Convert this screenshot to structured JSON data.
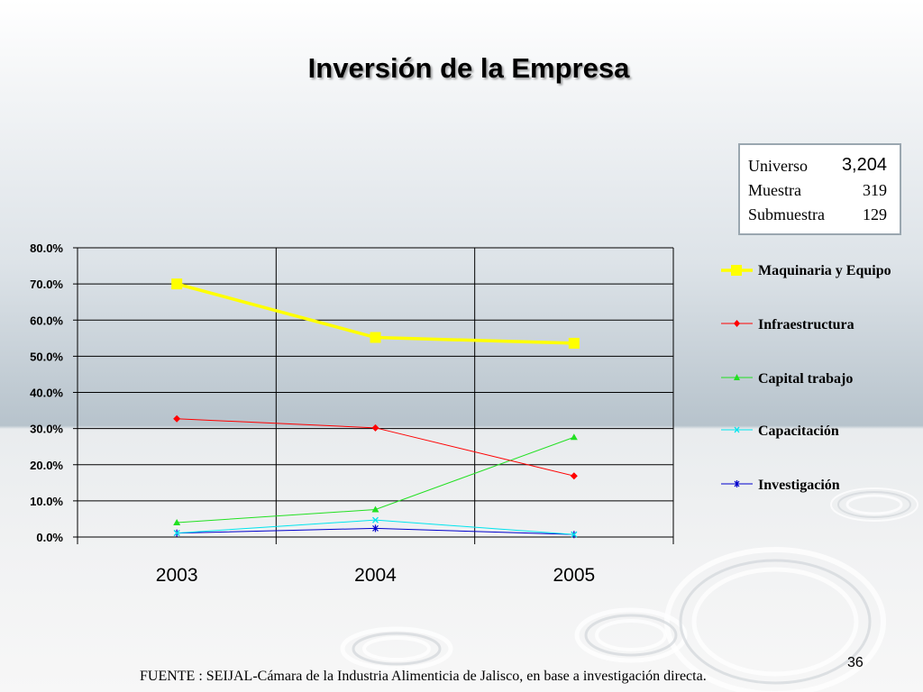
{
  "slide": {
    "title": "Inversión de la Empresa",
    "footer": "FUENTE : SEIJAL-Cámara de la Industria Alimenticia de Jalisco,  en base a investigación directa.",
    "page_number": "36"
  },
  "info_box": {
    "rows": [
      {
        "label": "Universo",
        "value": "3,204"
      },
      {
        "label": "Muestra",
        "value": "319"
      },
      {
        "label": "Submuestra",
        "value": "129"
      }
    ]
  },
  "chart_data": {
    "type": "line",
    "title": "",
    "xlabel": "",
    "ylabel": "",
    "categories": [
      "2003",
      "2004",
      "2005"
    ],
    "ylim": [
      0,
      80
    ],
    "yticks": [
      "0.0%",
      "10.0%",
      "20.0%",
      "30.0%",
      "40.0%",
      "50.0%",
      "60.0%",
      "70.0%",
      "80.0%"
    ],
    "grid": true,
    "legend_position": "right",
    "series": [
      {
        "name": "Maquinaria y Equipo",
        "values": [
          70.0,
          55.2,
          53.6
        ],
        "color": "#ffff00",
        "marker": "square",
        "width": "thick"
      },
      {
        "name": "Infraestructura",
        "values": [
          32.7,
          30.2,
          16.9
        ],
        "color": "#ff0000",
        "marker": "diamond",
        "width": "thin"
      },
      {
        "name": "Capital trabajo",
        "values": [
          4.0,
          7.6,
          27.6
        ],
        "color": "#22e022",
        "marker": "triangle",
        "width": "thin"
      },
      {
        "name": "Capacitación",
        "values": [
          1.1,
          4.7,
          0.7
        ],
        "color": "#00e5ee",
        "marker": "x",
        "width": "thin"
      },
      {
        "name": "Investigación",
        "values": [
          1.1,
          2.4,
          0.7
        ],
        "color": "#0000cc",
        "marker": "star",
        "width": "thin"
      }
    ]
  }
}
